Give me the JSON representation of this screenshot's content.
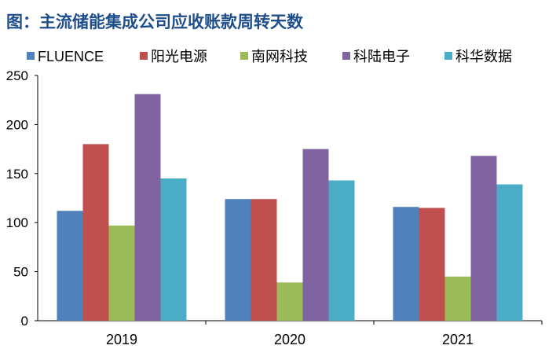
{
  "chart_data": {
    "type": "bar",
    "title": "图：主流储能集成公司应收账款周转天数",
    "categories": [
      "2019",
      "2020",
      "2021"
    ],
    "series": [
      {
        "name": "FLUENCE",
        "color": "#4f81bd",
        "values": [
          112,
          124,
          116
        ]
      },
      {
        "name": "阳光电源",
        "color": "#c0504d",
        "values": [
          180,
          124,
          115
        ]
      },
      {
        "name": "南网科技",
        "color": "#9bbb59",
        "values": [
          97,
          39,
          45
        ]
      },
      {
        "name": "科陆电子",
        "color": "#8064a2",
        "values": [
          231,
          175,
          168
        ]
      },
      {
        "name": "科华数据",
        "color": "#4bacc6",
        "values": [
          145,
          143,
          139
        ]
      }
    ],
    "yticks": [
      0,
      50,
      100,
      150,
      200,
      250
    ],
    "ylim": [
      0,
      250
    ],
    "grid": false,
    "legend": "top"
  }
}
